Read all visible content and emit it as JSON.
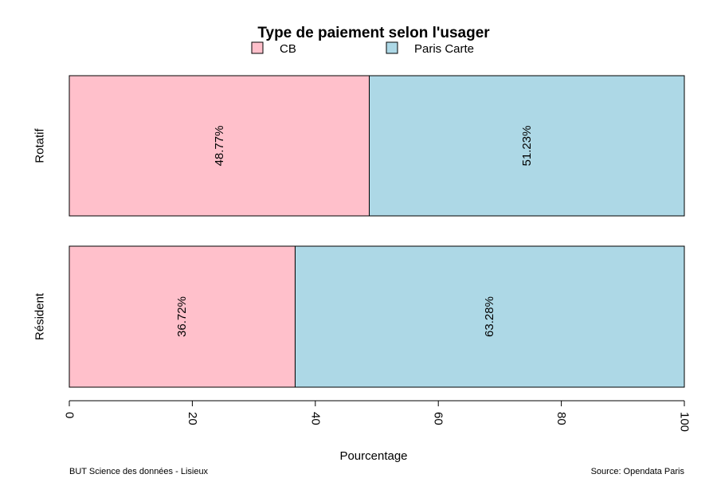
{
  "chart_data": {
    "type": "bar",
    "orientation": "horizontal",
    "stacked": true,
    "title": "Type de paiement selon l'usager",
    "xlabel": "Pourcentage",
    "ylabel": "",
    "xlim": [
      0,
      100
    ],
    "x_ticks": [
      "0",
      "20",
      "40",
      "60",
      "80",
      "100"
    ],
    "categories": [
      "Rotatif",
      "Résident"
    ],
    "series": [
      {
        "name": "CB",
        "color": "#ffc0cb",
        "values": [
          48.77,
          36.72
        ],
        "labels": [
          "48.77%",
          "36.72%"
        ]
      },
      {
        "name": "Paris Carte",
        "color": "#add8e6",
        "values": [
          51.23,
          63.28
        ],
        "labels": [
          "51.23%",
          "63.28%"
        ]
      }
    ],
    "legend_position": "top",
    "grid": false
  },
  "footer": {
    "left": "BUT Science des données - Lisieux",
    "right": "Source: Opendata Paris"
  }
}
